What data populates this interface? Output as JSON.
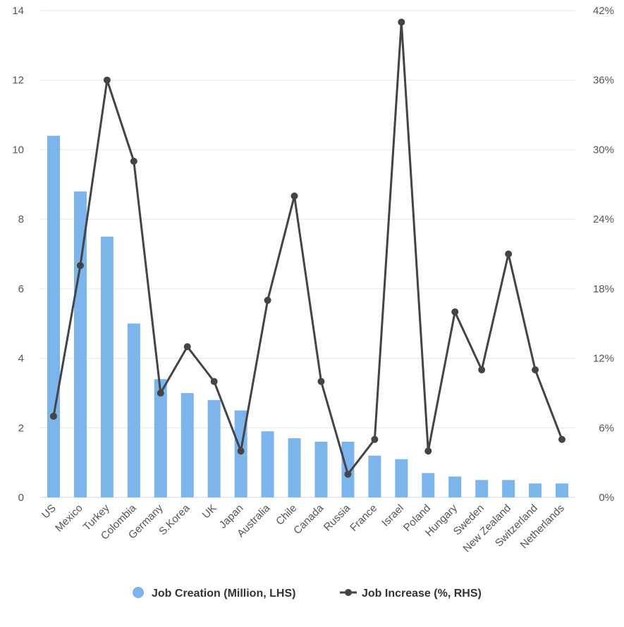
{
  "chart_data": {
    "type": "bar",
    "categories": [
      "US",
      "Mexico",
      "Turkey",
      "Colombia",
      "Germany",
      "S.Korea",
      "UK",
      "Japan",
      "Australia",
      "Chile",
      "Canada",
      "Russia",
      "France",
      "Israel",
      "Poland",
      "Hungary",
      "Sweden",
      "New Zealand",
      "Switzerland",
      "Netherlands"
    ],
    "series": [
      {
        "name": "Job Creation (Million, LHS)",
        "type": "bar",
        "axis": "left",
        "color": "#7cb5ec",
        "values": [
          10.4,
          8.8,
          7.5,
          5.0,
          3.4,
          3.0,
          2.8,
          2.5,
          1.9,
          1.7,
          1.6,
          1.6,
          1.2,
          1.1,
          0.7,
          0.6,
          0.5,
          0.5,
          0.4,
          0.4
        ]
      },
      {
        "name": "Job Increase (%, RHS)",
        "type": "line",
        "axis": "right",
        "color": "#434348",
        "values": [
          7,
          20,
          36,
          29,
          9,
          13,
          10,
          4,
          17,
          26,
          10,
          2,
          5,
          41,
          4,
          16,
          11,
          21,
          11,
          5
        ]
      }
    ],
    "yleft": {
      "lim": [
        0,
        14
      ],
      "ticks": [
        "0",
        "2",
        "4",
        "6",
        "8",
        "10",
        "12",
        "14"
      ],
      "tick_values": [
        0,
        2,
        4,
        6,
        8,
        10,
        12,
        14
      ]
    },
    "yright": {
      "lim": [
        0,
        42
      ],
      "ticks": [
        "0%",
        "6%",
        "12%",
        "18%",
        "24%",
        "30%",
        "36%",
        "42%"
      ],
      "tick_values": [
        0,
        6,
        12,
        18,
        24,
        30,
        36,
        42
      ]
    },
    "grid": true,
    "legend": "bottom-center"
  }
}
